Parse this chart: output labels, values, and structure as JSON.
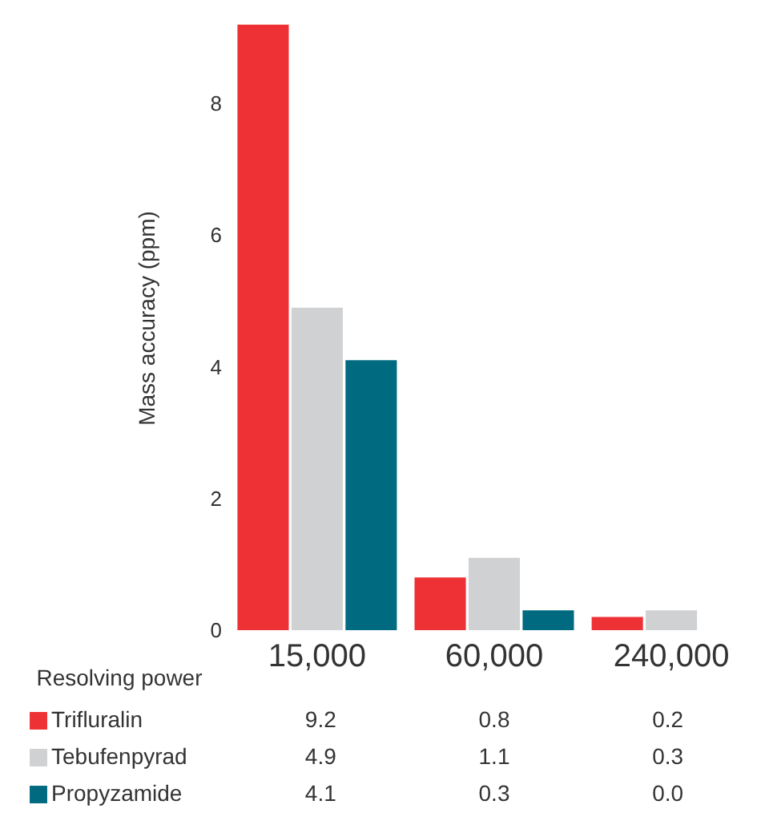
{
  "chart_data": {
    "type": "bar",
    "xlabel": "Resolving power",
    "ylabel": "Mass accuracy (ppm)",
    "categories": [
      "15,000",
      "60,000",
      "240,000"
    ],
    "series": [
      {
        "name": "Trifluralin",
        "color": "#ee3134",
        "values": [
          9.2,
          0.8,
          0.2
        ],
        "value_labels": [
          "9.2",
          "0.8",
          "0.2"
        ]
      },
      {
        "name": "Tebufenpyrad",
        "color": "#d0d1d3",
        "values": [
          4.9,
          1.1,
          0.3
        ],
        "value_labels": [
          "4.9",
          "1.1",
          "0.3"
        ]
      },
      {
        "name": "Propyzamide",
        "color": "#006a80",
        "values": [
          4.1,
          0.3,
          0.0
        ],
        "value_labels": [
          "4.1",
          "0.3",
          "0.0"
        ]
      }
    ],
    "ylim": [
      0,
      9.5
    ],
    "yticks": [
      0,
      2,
      4,
      6,
      8
    ],
    "grid": false,
    "legend": "bottom"
  }
}
